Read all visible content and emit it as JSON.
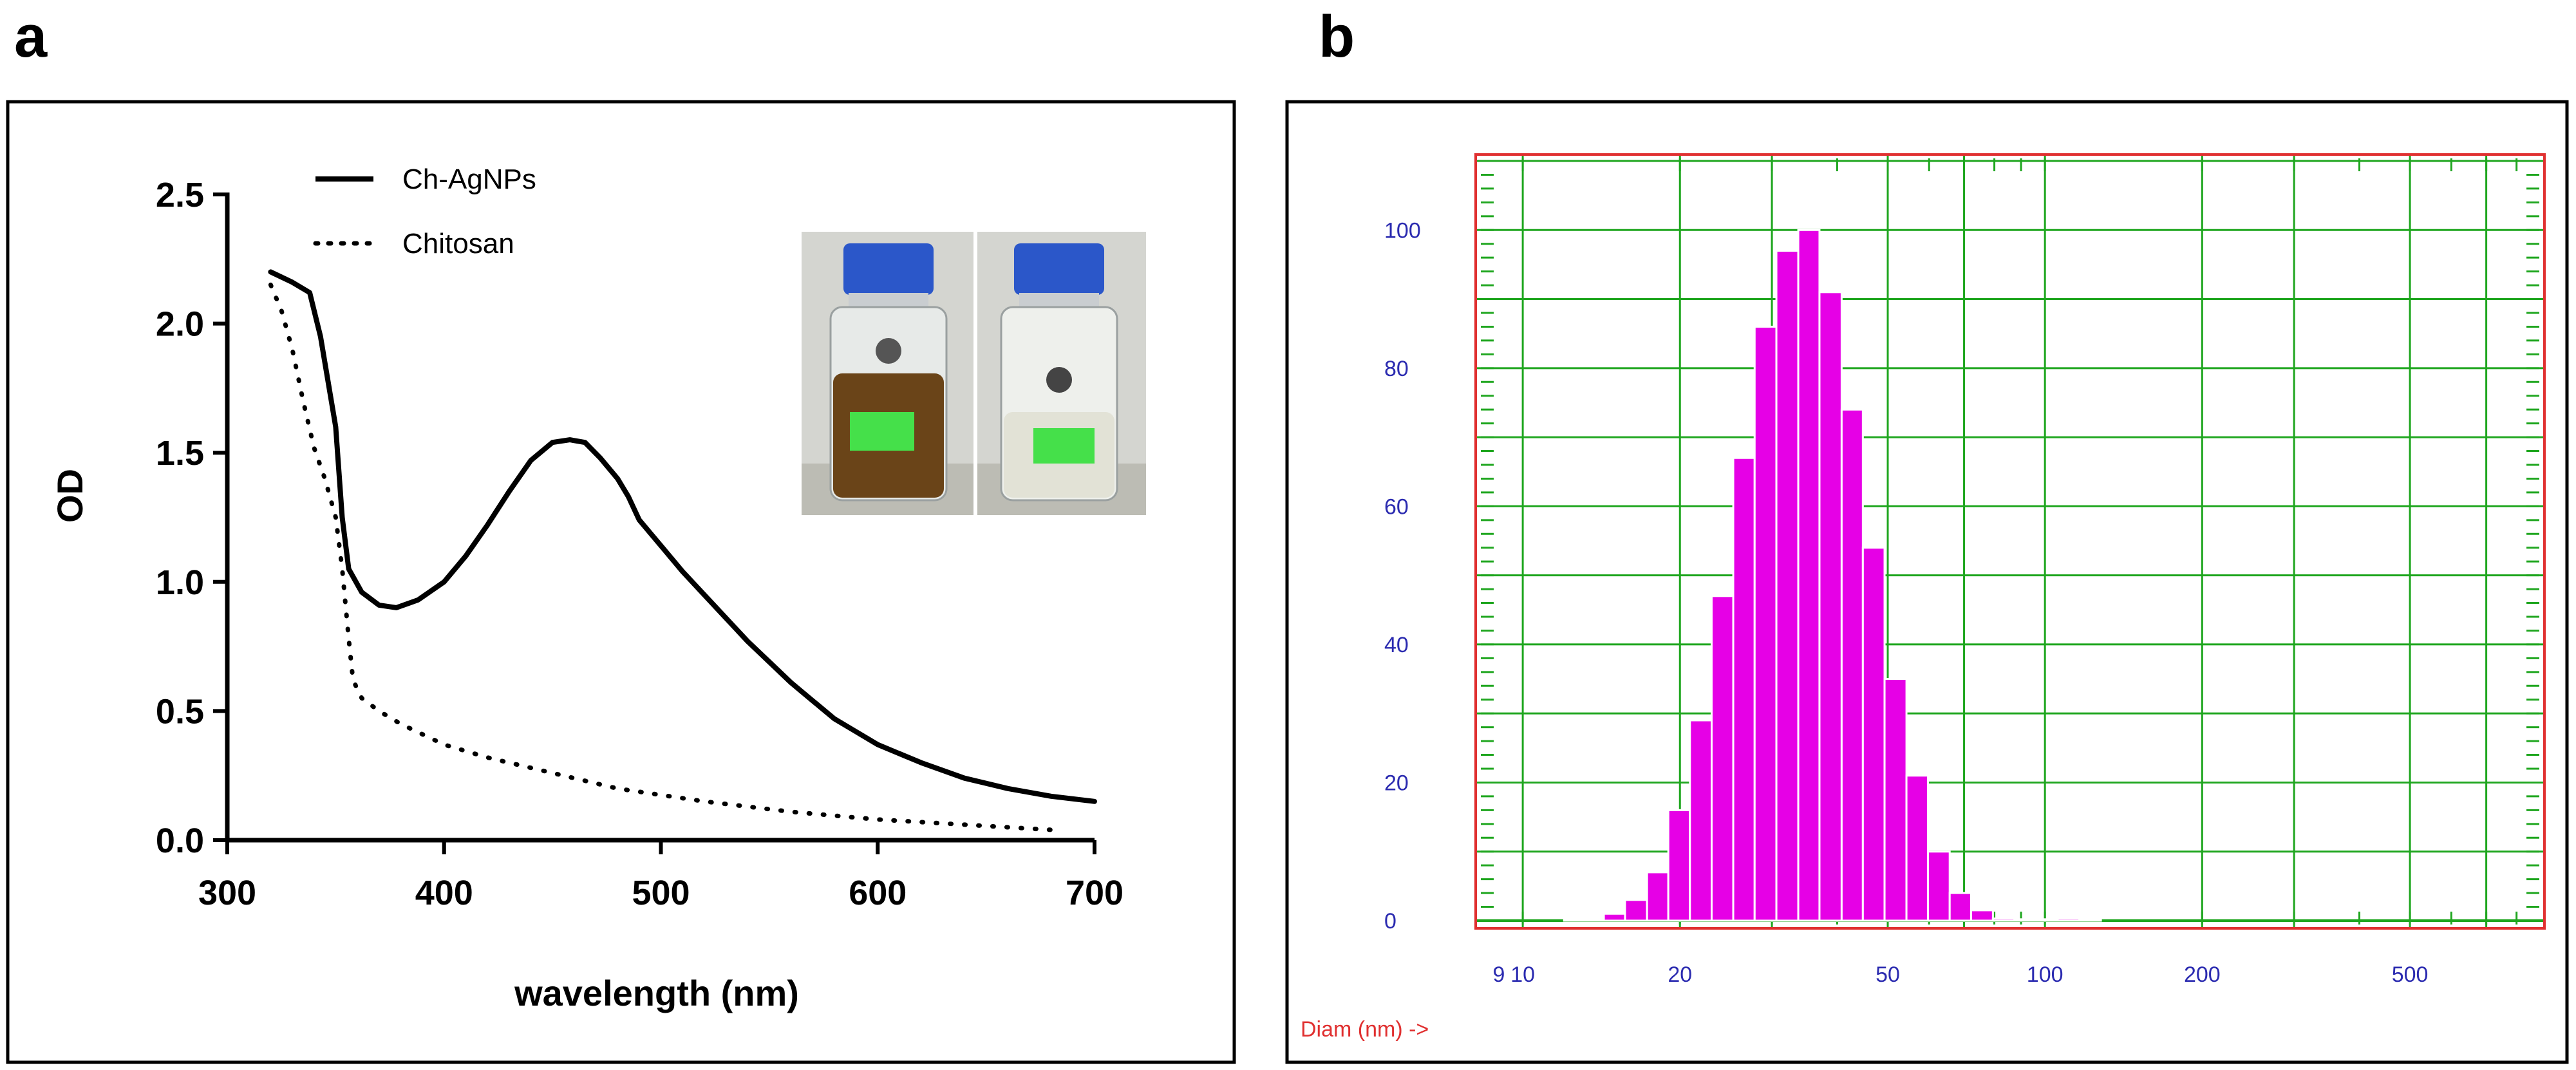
{
  "panels": {
    "a": {
      "label": "a"
    },
    "b": {
      "label": "b"
    }
  },
  "chart_data": [
    {
      "id": "uv-vis",
      "type": "line",
      "title": "",
      "xlabel": "wavelength (nm)",
      "ylabel": "OD",
      "xlim": [
        300,
        700
      ],
      "ylim": [
        0,
        2.5
      ],
      "xticks": [
        300,
        400,
        500,
        600,
        700
      ],
      "xtick_labels": [
        "300",
        "400",
        "500",
        "600",
        "700"
      ],
      "yticks": [
        0,
        0.5,
        1.0,
        1.5,
        2.0,
        2.5
      ],
      "ytick_labels": [
        "0.0",
        "0.5",
        "1.0",
        "1.5",
        "2.0",
        "2.5"
      ],
      "legend_location": "top-left",
      "series": [
        {
          "name": "Ch-AgNPs",
          "style": "solid",
          "color": "#000000",
          "points": [
            [
              320,
              2.2
            ],
            [
              330,
              2.16
            ],
            [
              338,
              2.12
            ],
            [
              343,
              1.95
            ],
            [
              350,
              1.6
            ],
            [
              353,
              1.25
            ],
            [
              356,
              1.05
            ],
            [
              362,
              0.96
            ],
            [
              370,
              0.91
            ],
            [
              378,
              0.9
            ],
            [
              388,
              0.93
            ],
            [
              400,
              1.0
            ],
            [
              410,
              1.1
            ],
            [
              420,
              1.22
            ],
            [
              430,
              1.35
            ],
            [
              440,
              1.47
            ],
            [
              450,
              1.54
            ],
            [
              458,
              1.55
            ],
            [
              465,
              1.54
            ],
            [
              472,
              1.48
            ],
            [
              480,
              1.4
            ],
            [
              485,
              1.33
            ],
            [
              490,
              1.24
            ],
            [
              500,
              1.14
            ],
            [
              510,
              1.04
            ],
            [
              520,
              0.95
            ],
            [
              530,
              0.86
            ],
            [
              540,
              0.77
            ],
            [
              550,
              0.69
            ],
            [
              560,
              0.61
            ],
            [
              570,
              0.54
            ],
            [
              580,
              0.47
            ],
            [
              590,
              0.42
            ],
            [
              600,
              0.37
            ],
            [
              620,
              0.3
            ],
            [
              640,
              0.24
            ],
            [
              660,
              0.2
            ],
            [
              680,
              0.17
            ],
            [
              700,
              0.15
            ]
          ]
        },
        {
          "name": "Chitosan",
          "style": "dotted",
          "color": "#000000",
          "points": [
            [
              320,
              2.15
            ],
            [
              325,
              2.05
            ],
            [
              330,
              1.9
            ],
            [
              335,
              1.7
            ],
            [
              340,
              1.52
            ],
            [
              345,
              1.4
            ],
            [
              350,
              1.25
            ],
            [
              353,
              1.05
            ],
            [
              356,
              0.78
            ],
            [
              358,
              0.62
            ],
            [
              362,
              0.55
            ],
            [
              370,
              0.5
            ],
            [
              380,
              0.45
            ],
            [
              400,
              0.37
            ],
            [
              420,
              0.32
            ],
            [
              450,
              0.26
            ],
            [
              480,
              0.2
            ],
            [
              520,
              0.15
            ],
            [
              560,
              0.11
            ],
            [
              600,
              0.08
            ],
            [
              640,
              0.06
            ],
            [
              680,
              0.04
            ]
          ]
        }
      ]
    },
    {
      "id": "size-distribution",
      "type": "bar",
      "title": "",
      "xlabel": "Diam (nm) ->",
      "xscale": "log",
      "xlim": [
        9,
        850
      ],
      "ylim": [
        0,
        110
      ],
      "xtick_values": [
        9,
        10,
        20,
        50,
        100,
        200,
        500
      ],
      "xtick_labels": [
        "9",
        "10",
        "20",
        "50",
        "100",
        "200",
        "500"
      ],
      "ytick_values": [
        0,
        20,
        40,
        60,
        80,
        100
      ],
      "ytick_labels": [
        "0",
        "20",
        "40",
        "60",
        "80",
        "100"
      ],
      "color": "#e600e6",
      "bins": [
        {
          "lo": 12.0,
          "hi": 13.0,
          "value": 0.2
        },
        {
          "lo": 13.0,
          "hi": 14.3,
          "value": 0.2
        },
        {
          "lo": 14.3,
          "hi": 15.7,
          "value": 1
        },
        {
          "lo": 15.7,
          "hi": 17.3,
          "value": 3
        },
        {
          "lo": 17.3,
          "hi": 19.0,
          "value": 7
        },
        {
          "lo": 19.0,
          "hi": 20.9,
          "value": 16
        },
        {
          "lo": 20.9,
          "hi": 23.0,
          "value": 29
        },
        {
          "lo": 23.0,
          "hi": 25.3,
          "value": 47
        },
        {
          "lo": 25.3,
          "hi": 27.8,
          "value": 67
        },
        {
          "lo": 27.8,
          "hi": 30.6,
          "value": 86
        },
        {
          "lo": 30.6,
          "hi": 33.7,
          "value": 97
        },
        {
          "lo": 33.7,
          "hi": 37.0,
          "value": 100
        },
        {
          "lo": 37.0,
          "hi": 40.8,
          "value": 91
        },
        {
          "lo": 40.8,
          "hi": 44.8,
          "value": 74
        },
        {
          "lo": 44.8,
          "hi": 49.3,
          "value": 54
        },
        {
          "lo": 49.3,
          "hi": 54.3,
          "value": 35
        },
        {
          "lo": 54.3,
          "hi": 59.7,
          "value": 21
        },
        {
          "lo": 59.7,
          "hi": 65.7,
          "value": 10
        },
        {
          "lo": 65.7,
          "hi": 72.2,
          "value": 4
        },
        {
          "lo": 72.2,
          "hi": 79.5,
          "value": 1.5
        },
        {
          "lo": 79.5,
          "hi": 87.4,
          "value": 0.3
        },
        {
          "lo": 87.4,
          "hi": 96.2,
          "value": 0.2
        },
        {
          "lo": 96.2,
          "hi": 105.8,
          "value": 0.2
        },
        {
          "lo": 105.8,
          "hi": 116.4,
          "value": 0.3
        },
        {
          "lo": 116.4,
          "hi": 128.0,
          "value": 0.2
        }
      ]
    }
  ]
}
